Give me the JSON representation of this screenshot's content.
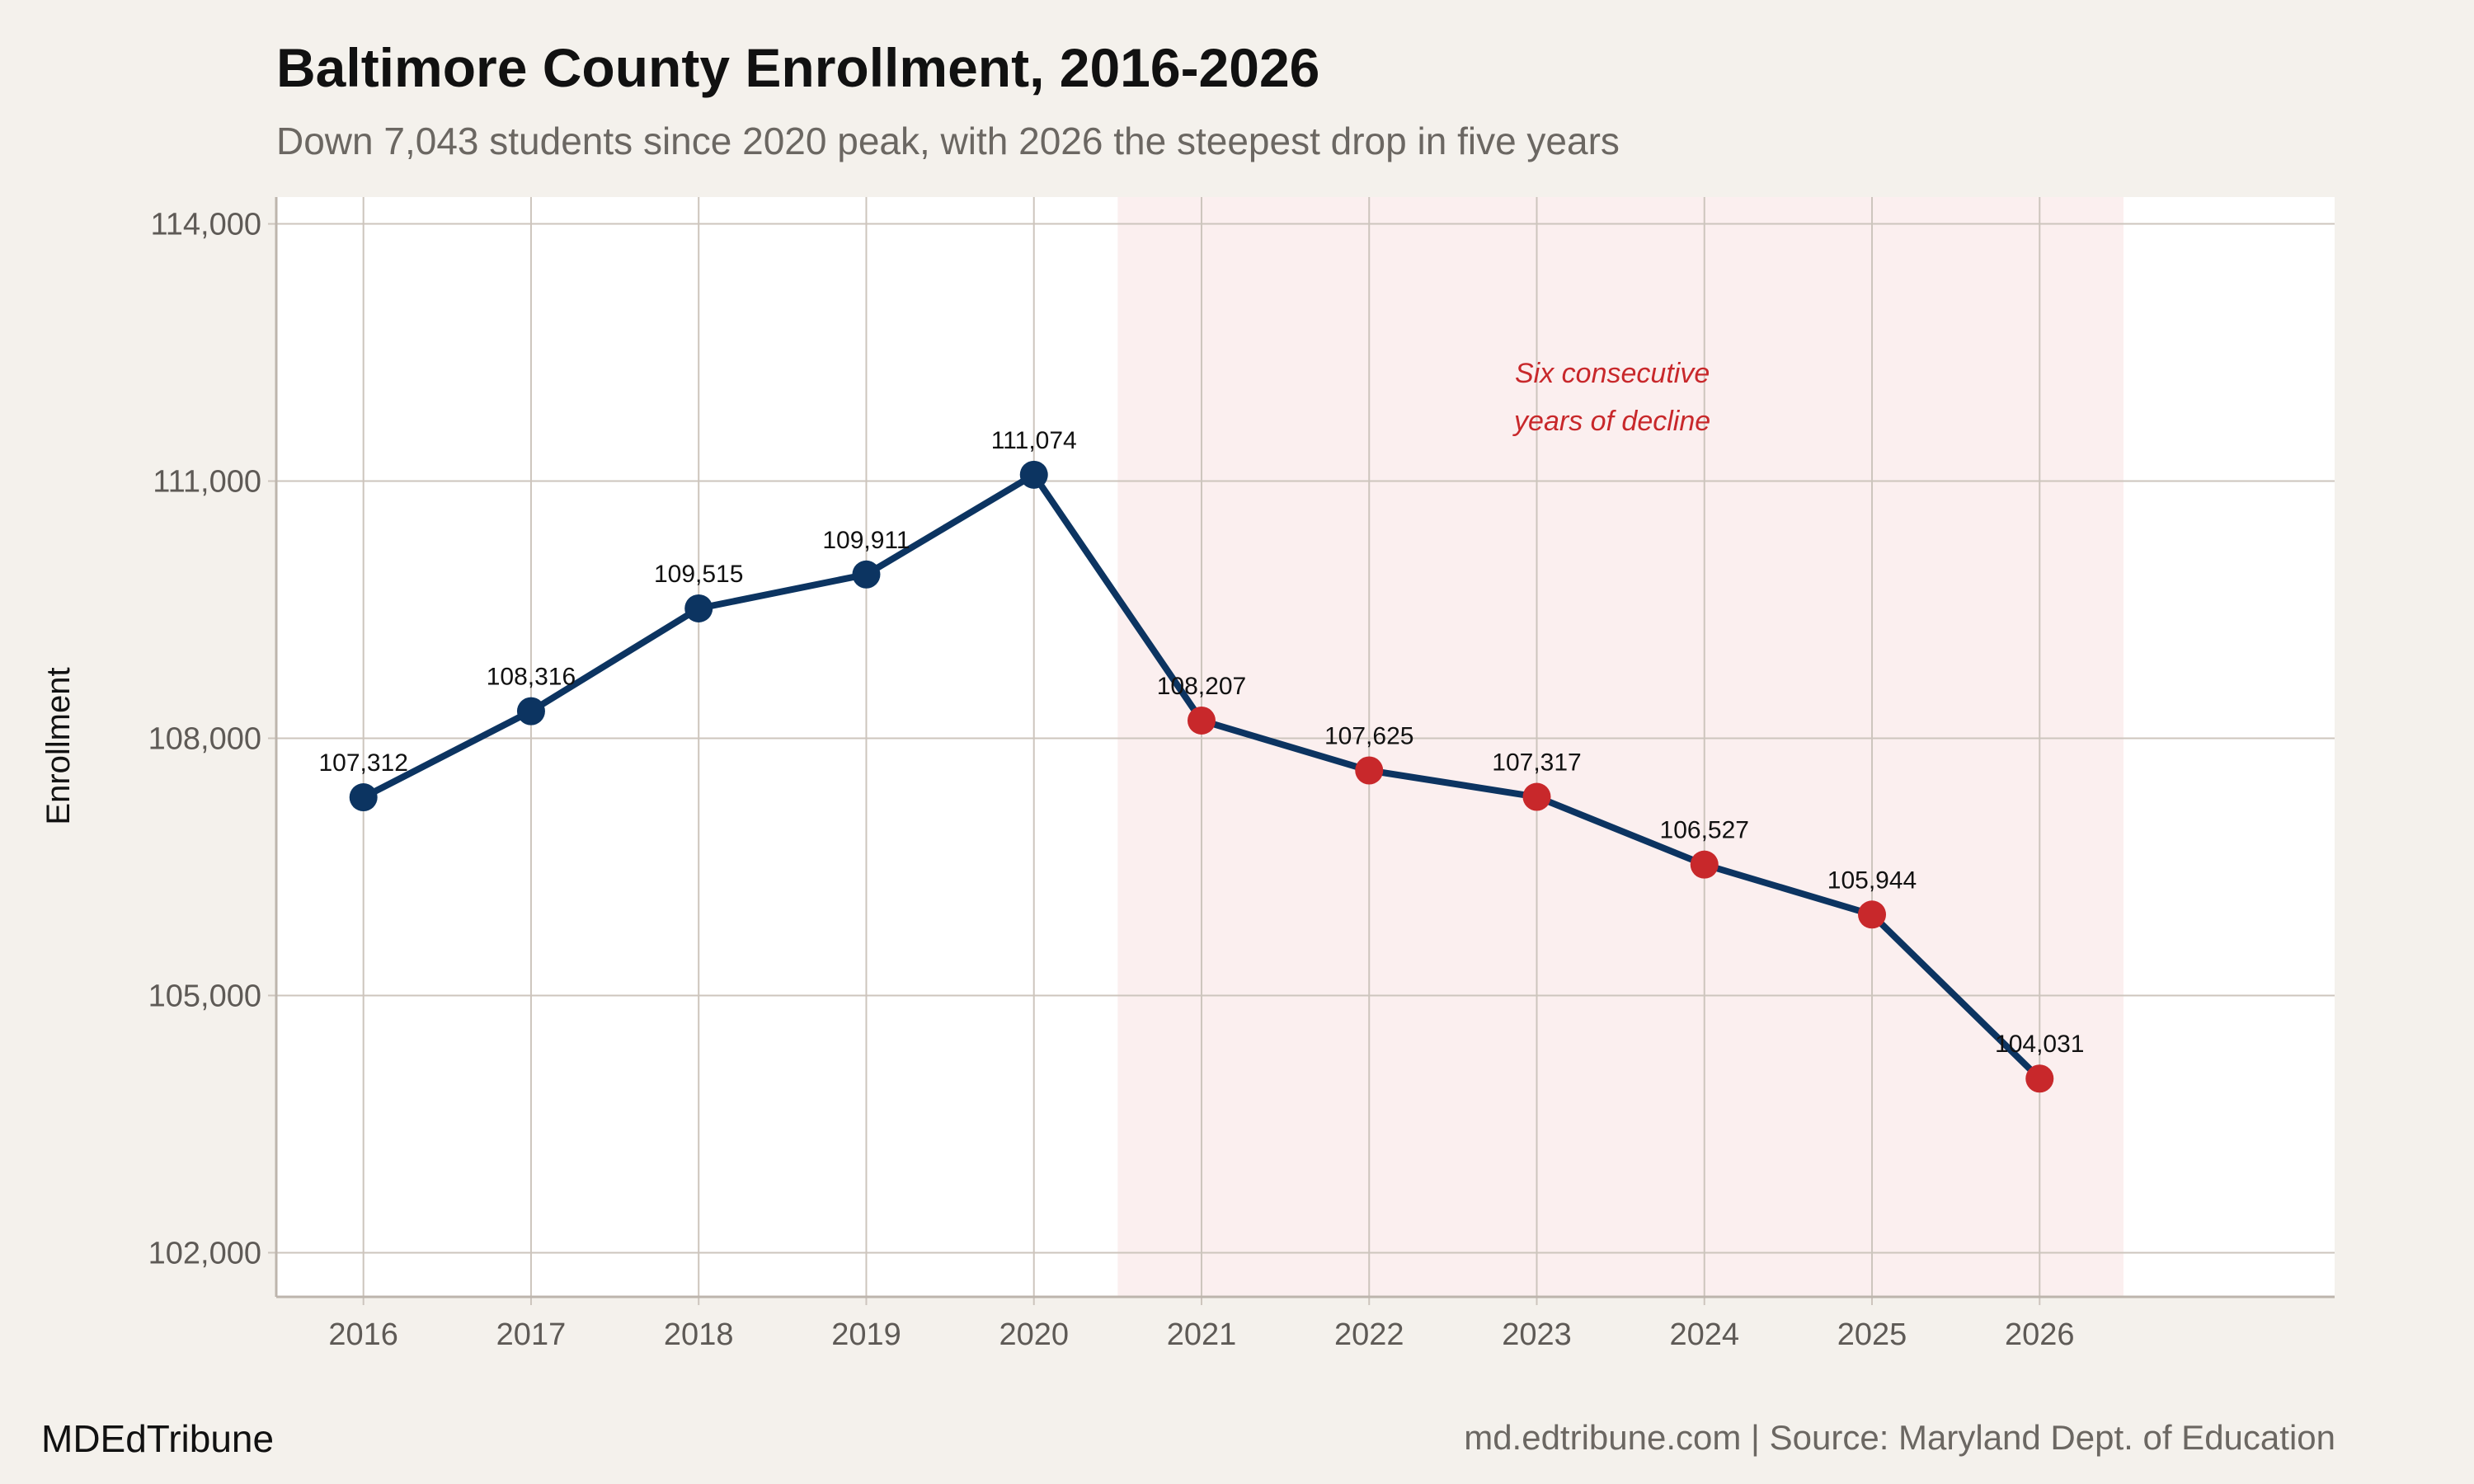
{
  "chart_data": {
    "type": "line",
    "title": "Baltimore County Enrollment, 2016-2026",
    "subtitle": "Down 7,043 students since 2020 peak, with 2026 the steepest drop in five years",
    "xlabel": "",
    "ylabel": "Enrollment",
    "x": [
      2016,
      2017,
      2018,
      2019,
      2020,
      2021,
      2022,
      2023,
      2024,
      2025,
      2026
    ],
    "values": [
      107312,
      108316,
      109515,
      109911,
      111074,
      108207,
      107625,
      107317,
      106527,
      105944,
      104031
    ],
    "data_labels": [
      "107,312",
      "108,316",
      "109,515",
      "109,911",
      "111,074",
      "108,207",
      "107,625",
      "107,317",
      "106,527",
      "105,944",
      "104,031"
    ],
    "xticks": [
      "2016",
      "2017",
      "2018",
      "2019",
      "2020",
      "2021",
      "2022",
      "2023",
      "2024",
      "2025",
      "2026"
    ],
    "yticks": [
      102000,
      105000,
      108000,
      111000,
      114000
    ],
    "ytick_labels": [
      "102,000",
      "105,000",
      "108,000",
      "111,000",
      "114,000"
    ],
    "xlim": [
      2015.48,
      2027.76
    ],
    "ylim": [
      101485,
      114313
    ],
    "grid": true,
    "highlight_region": {
      "x_start": 2020.5,
      "x_end": 2026.5,
      "color": "#fbefef"
    },
    "annotation": {
      "lines": [
        "Six consecutive",
        "years of decline"
      ],
      "x": 2023.5,
      "color": "#c8282b"
    },
    "colors": {
      "line": "#0c3461",
      "marker_before": "#0c3461",
      "marker_decline": "#c8282b",
      "grid": "#cdc5bd",
      "background": "#f4f1ec",
      "panel": "#ffffff"
    }
  },
  "footer": {
    "brand": "MDEdTribune",
    "source": "md.edtribune.com | Source: Maryland Dept. of Education"
  }
}
